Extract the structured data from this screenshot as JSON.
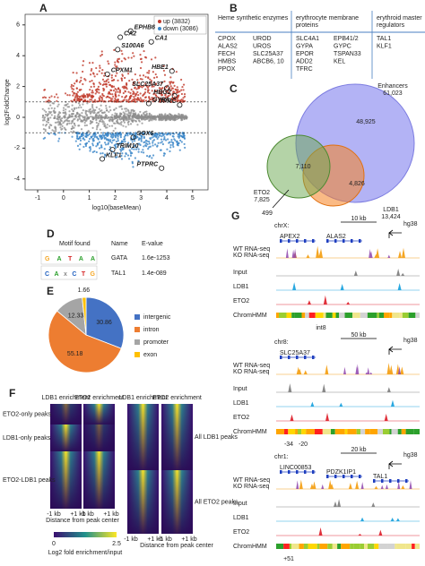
{
  "A": {
    "label": "A",
    "y_label": "log2FoldChange",
    "x_label": "log10(baseMean)",
    "xticks": [
      -1,
      0,
      1,
      2,
      3,
      4,
      5
    ],
    "yticks": [
      -4,
      -2,
      0,
      2,
      4,
      6
    ],
    "legend": [
      "up (3832)",
      "down (3086)"
    ],
    "genes": [
      "EPHB6",
      "CA2",
      "S100A6",
      "CA1",
      "CPXM1",
      "HBE1",
      "SLC25A37",
      "HBG2",
      "TFRC",
      "GYPA",
      "SOX6",
      "TRIM10",
      "KLF1",
      "PTPRC"
    ]
  },
  "B": {
    "label": "B",
    "headers": [
      [
        "Heme synthetic enzymes"
      ],
      [
        "erythrocyte membrane",
        "proteins"
      ],
      [
        "erythroid master",
        "regulators"
      ]
    ],
    "columns": [
      [
        "CPOX",
        "ALAS2",
        "FECH",
        "HMBS",
        "PPOX"
      ],
      [
        "UROD",
        "UROS",
        "SLC25A37",
        "ABCB6, 10"
      ],
      [
        "SLC4A1",
        "GYPA",
        "EPOR",
        "ADD2",
        "TFRC"
      ],
      [
        "EPB41/2",
        "GYPC",
        "TSPAN33",
        "KEL"
      ],
      [
        "TAL1",
        "KLF1"
      ]
    ]
  },
  "C": {
    "label": "C",
    "sets": [
      {
        "name": "Enhancers",
        "count": "61,023"
      },
      {
        "name": "ETO2",
        "count": "7,825"
      },
      {
        "name": "LDB1",
        "count": "13,424"
      }
    ],
    "regions": [
      "48,925",
      "7,110",
      "4,826",
      "499"
    ]
  },
  "D": {
    "label": "D",
    "headers": [
      "Motif found",
      "Name",
      "E-value"
    ],
    "rows": [
      [
        "GATAA",
        "GATA",
        "1.6e-1253"
      ],
      [
        "CAxCTG",
        "TAL1",
        "1.4e-089"
      ]
    ]
  },
  "E": {
    "label": "E",
    "categories": [
      "intergenic",
      "intron",
      "promoter",
      "exon"
    ],
    "values": [
      30.86,
      55.18,
      12.33,
      1.66
    ],
    "colors": [
      "#4472c4",
      "#ed7d31",
      "#a5a5a5",
      "#ffc000"
    ]
  },
  "F": {
    "label": "F",
    "columns": [
      "LDB1 enrichment",
      "ETO2 enrichment"
    ],
    "left_rows": [
      "ETO2-only peaks",
      "LDB1-only peaks",
      "ETO2-LDB1 peaks"
    ],
    "right_rows": [
      "All LDB1 peaks",
      "All ETO2 peaks"
    ],
    "x_ticks": [
      "-1 kb",
      "+1 kb"
    ],
    "x_label": "Distance from peak center",
    "colorbar": {
      "min": 0,
      "max": 2.5,
      "label": "Log2 fold enrichment/input"
    }
  },
  "G": {
    "label": "G",
    "genome": "hg38",
    "tracks": [
      "WT RNA-seq",
      "KO RNA-seq",
      "Input",
      "LDB1",
      "ETO2",
      "ChromHMM"
    ],
    "loci": [
      {
        "chrom": "chrX:",
        "scale": "10 kb",
        "genes": [
          "APEX2",
          "ALAS2"
        ],
        "annotations": [
          "int8"
        ]
      },
      {
        "chrom": "chr8:",
        "scale": "50 kb",
        "genes": [
          "SLC25A37"
        ],
        "annotations": [
          "-34",
          "-20"
        ]
      },
      {
        "chrom": "chr1:",
        "scale": "20 kb",
        "genes": [
          "LINC00853",
          "PDZK1IP1",
          "TAL1"
        ],
        "annotations": [
          "+51"
        ]
      }
    ]
  }
}
